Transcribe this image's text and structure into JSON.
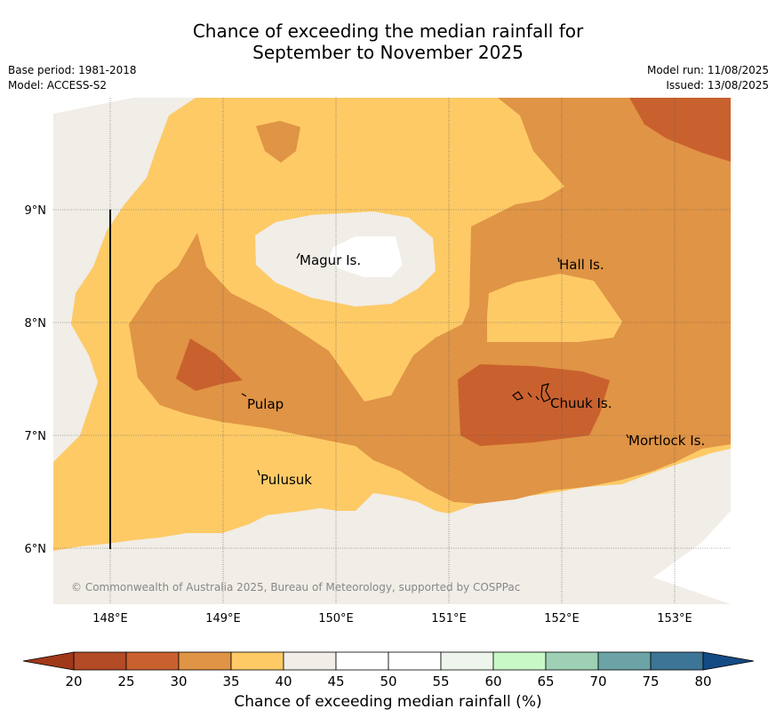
{
  "title": {
    "line1": "Chance of exceeding the median rainfall for",
    "line2": "September to November 2025"
  },
  "meta": {
    "base_period": "Base period: 1981-2018",
    "model": "Model: ACCESS-S2",
    "model_run": "Model run: 11/08/2025",
    "issued": "Issued: 13/08/2025"
  },
  "map": {
    "lon_labels": [
      "148°E",
      "149°E",
      "150°E",
      "151°E",
      "152°E",
      "153°E"
    ],
    "lat_labels": [
      "9°N",
      "8°N",
      "7°N",
      "6°N"
    ],
    "places": [
      {
        "name": "Magur Is."
      },
      {
        "name": "Hall Is."
      },
      {
        "name": "Pulap"
      },
      {
        "name": "Chuuk Is."
      },
      {
        "name": "Mortlock Is."
      },
      {
        "name": "Pulusuk"
      }
    ],
    "copyright": "© Commonwealth of Australia 2025, Bureau of Meteorology, supported by COSPPac",
    "colors": {
      "c20_25": "#b34b26",
      "c25_30": "#c9612f",
      "c30_35": "#e09445",
      "c35_40": "#fdca66",
      "c40_45": "#f1ede7",
      "c45_55": "#ffffff"
    }
  },
  "colorbar": {
    "labels": [
      "20",
      "25",
      "30",
      "35",
      "40",
      "45",
      "50",
      "55",
      "60",
      "65",
      "70",
      "75",
      "80"
    ],
    "colors": [
      "#b34b26",
      "#c9612f",
      "#e09445",
      "#fdca66",
      "#f1ede7",
      "#ffffff",
      "#ffffff",
      "#eef5ec",
      "#c9f8c7",
      "#9ed0b6",
      "#6ba3a6",
      "#3c7595"
    ],
    "under_color": "#a0381a",
    "over_color": "#154b84",
    "title": "Chance of exceeding median rainfall (%)"
  }
}
